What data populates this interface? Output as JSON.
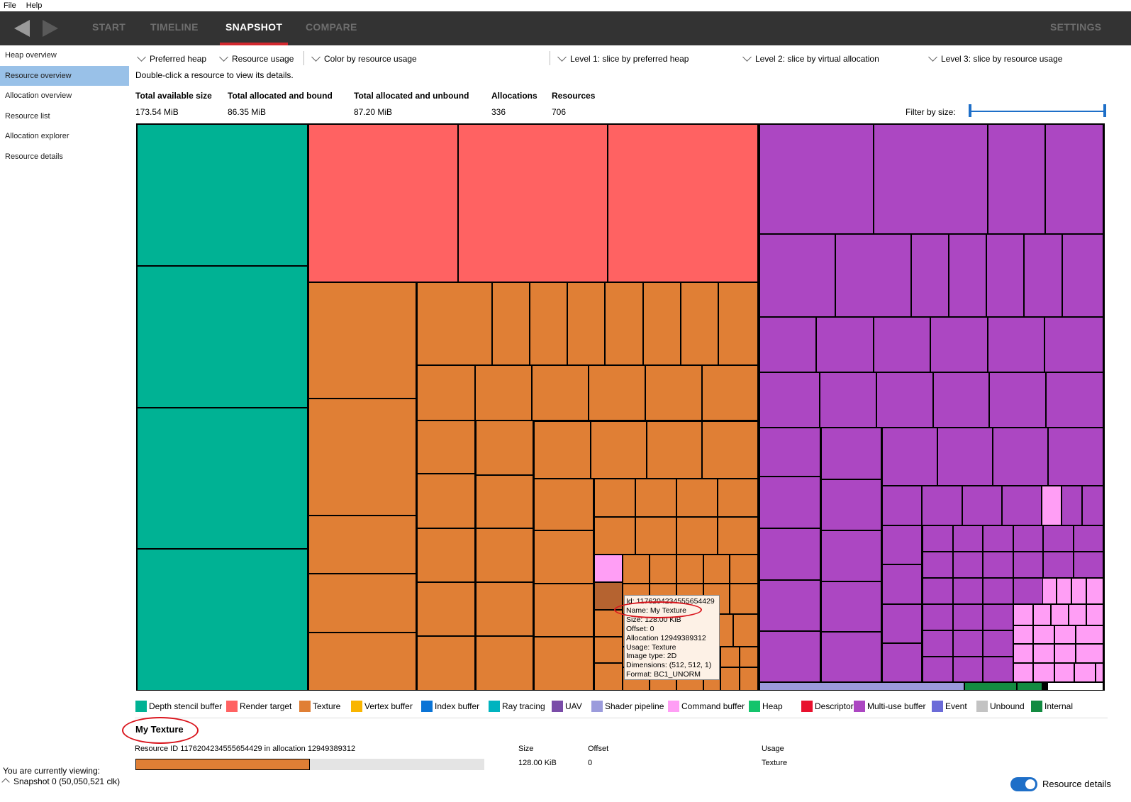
{
  "menu": {
    "file": "File",
    "help": "Help"
  },
  "nav": {
    "back_icon": "left-arrow-icon",
    "forward_icon": "right-arrow-icon",
    "tabs": [
      {
        "label": "START",
        "active": false
      },
      {
        "label": "TIMELINE",
        "active": false
      },
      {
        "label": "SNAPSHOT",
        "active": true
      },
      {
        "label": "COMPARE",
        "active": false
      }
    ],
    "settings": "SETTINGS"
  },
  "sidebar": {
    "items": [
      {
        "label": "Heap overview",
        "active": false
      },
      {
        "label": "Resource overview",
        "active": true
      },
      {
        "label": "Allocation overview",
        "active": false
      },
      {
        "label": "Resource list",
        "active": false
      },
      {
        "label": "Allocation explorer",
        "active": false
      },
      {
        "label": "Resource details",
        "active": false
      }
    ],
    "viewing_label": "You are currently viewing:",
    "snapshot": "Snapshot 0 (50,050,521 clk)"
  },
  "toolbar": {
    "preferred_heap": "Preferred heap",
    "resource_usage": "Resource usage",
    "color_by": "Color by resource usage",
    "level1": "Level 1: slice by preferred heap",
    "level2": "Level 2: slice by virtual allocation",
    "level3": "Level 3: slice by resource usage",
    "hint": "Double-click a resource to view its details."
  },
  "stats": {
    "headers": [
      "Total available size",
      "Total allocated and bound",
      "Total allocated and unbound",
      "Allocations",
      "Resources"
    ],
    "values": [
      "173.54 MiB",
      "86.35 MiB",
      "87.20 MiB",
      "336",
      "706"
    ],
    "filter_label": "Filter by size:"
  },
  "tooltip": {
    "lines": [
      "Id: 1176204234555654429",
      "Name: My Texture",
      "Size: 128.00 KiB",
      "Offset: 0",
      "Allocation 12949389312",
      "Usage: Texture",
      "Image type: 2D",
      "Dimensions: (512, 512, 1)",
      "Format: BC1_UNORM"
    ]
  },
  "colors": {
    "depth": "#00b294",
    "render": "#ff6262",
    "texture": "#e07f35",
    "multiuse": "#ac47c2",
    "command": "#ff9ef5",
    "internal": "#138b41",
    "shader": "#9b9bdc",
    "selected": "#b56330"
  },
  "legend": [
    {
      "label": "Depth stencil buffer",
      "color": "#00b294"
    },
    {
      "label": "Render target",
      "color": "#ff6262"
    },
    {
      "label": "Texture",
      "color": "#e07f35"
    },
    {
      "label": "Vertex buffer",
      "color": "#f9b500"
    },
    {
      "label": "Index buffer",
      "color": "#0a74d6"
    },
    {
      "label": "Ray tracing",
      "color": "#00b3bf"
    },
    {
      "label": "UAV",
      "color": "#7a4ca8"
    },
    {
      "label": "Shader pipeline",
      "color": "#9b9bdc"
    },
    {
      "label": "Command buffer",
      "color": "#ff9ef5"
    },
    {
      "label": "Heap",
      "color": "#14c46c"
    },
    {
      "label": "Descriptors",
      "color": "#e8112d"
    },
    {
      "label": "Multi-use buffer",
      "color": "#ac47c2"
    },
    {
      "label": "Event",
      "color": "#6b6bd8"
    },
    {
      "label": "Unbound",
      "color": "#c3c3c3"
    },
    {
      "label": "Internal",
      "color": "#138b41"
    }
  ],
  "details": {
    "title": "My Texture",
    "resource_line": "Resource ID 1176204234555654429 in allocation 12949389312",
    "size_label": "Size",
    "size_value": "128.00 KiB",
    "offset_label": "Offset",
    "offset_value": "0",
    "usage_label": "Usage",
    "usage_value": "Texture",
    "bar_fraction": 0.5,
    "toggle_label": "Resource details",
    "toggle_on": true
  }
}
